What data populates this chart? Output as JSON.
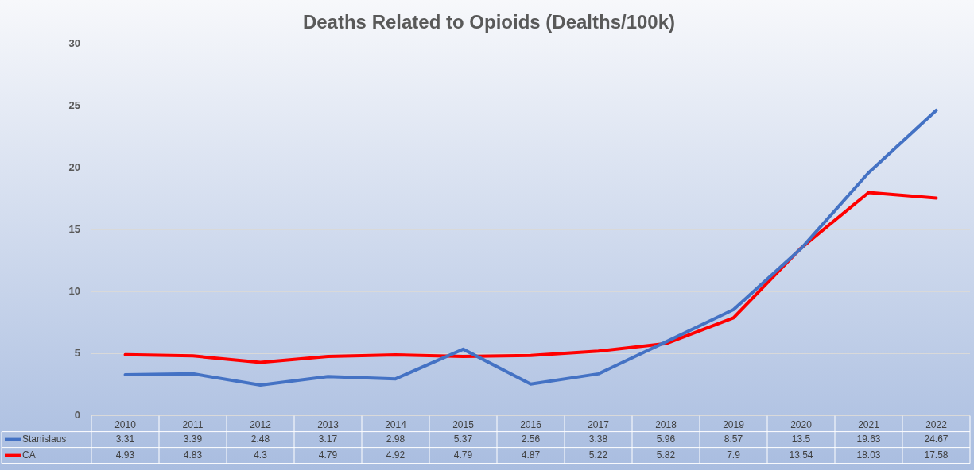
{
  "chart_data": {
    "type": "line",
    "title": "Deaths Related to Opioids (Dealths/100k)",
    "categories": [
      "2010",
      "2011",
      "2012",
      "2013",
      "2014",
      "2015",
      "2016",
      "2017",
      "2018",
      "2019",
      "2020",
      "2021",
      "2022"
    ],
    "series": [
      {
        "name": "Stanislaus",
        "color": "#4472c4",
        "values": [
          3.31,
          3.39,
          2.48,
          3.17,
          2.98,
          5.37,
          2.56,
          3.38,
          5.96,
          8.57,
          13.5,
          19.63,
          24.67
        ]
      },
      {
        "name": "CA",
        "color": "#ff0000",
        "values": [
          4.93,
          4.83,
          4.3,
          4.79,
          4.92,
          4.79,
          4.87,
          5.22,
          5.82,
          7.9,
          13.54,
          18.03,
          17.58
        ]
      }
    ],
    "ylim": [
      0,
      30
    ],
    "yticks": [
      0,
      5,
      10,
      15,
      20,
      25,
      30
    ],
    "grid": "y",
    "legend": "bottom",
    "data_labels": true,
    "marker": "none",
    "line_style": "solid"
  }
}
